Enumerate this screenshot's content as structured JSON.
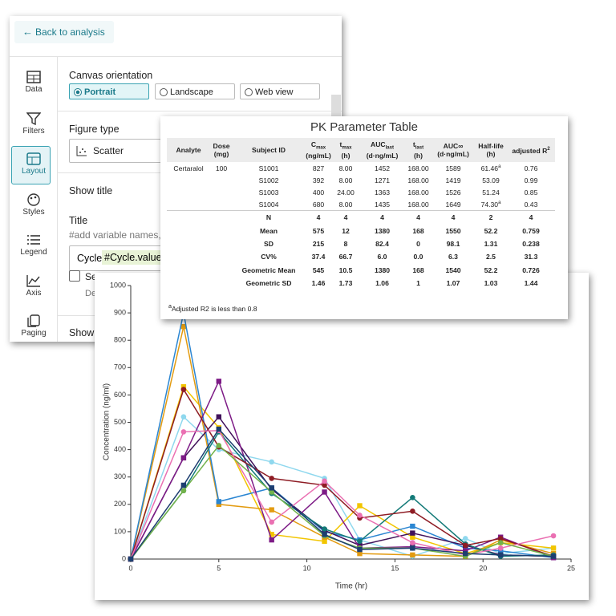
{
  "panel": {
    "back": "Back to analysis",
    "nav": [
      "Data",
      "Filters",
      "Layout",
      "Styles",
      "Legend",
      "Axis",
      "Paging"
    ],
    "orientation": {
      "label": "Canvas orientation",
      "options": [
        "Portrait",
        "Landscape",
        "Web view"
      ]
    },
    "figure_type": {
      "label": "Figure type",
      "value": "Scatter"
    },
    "show_title": "Show title",
    "title": {
      "label": "Title",
      "hint": "#add variable names,",
      "input": "Cycle",
      "tag": "#Cycle.values"
    },
    "checkbox": "Se",
    "sub": "De",
    "show": "Show"
  },
  "table": {
    "title": "PK Parameter Table",
    "columns": [
      {
        "text": "Analyte"
      },
      {
        "text": "Dose",
        "unit": "(mg)"
      },
      {
        "text": "Subject ID"
      },
      {
        "text": "C",
        "sub": "max",
        "unit": "(ng/mL)"
      },
      {
        "text": "t",
        "sub": "max",
        "unit": "(h)"
      },
      {
        "text": "AUC",
        "sub": "last",
        "unit": "(d·ng/mL)"
      },
      {
        "text": "t",
        "sub": "last",
        "unit": "(h)"
      },
      {
        "text": "AUC∞",
        "unit": "(d·ng/mL)"
      },
      {
        "text": "Half-life",
        "unit": "(h)"
      },
      {
        "text": "adjusted R",
        "sup": "2"
      }
    ],
    "rows": [
      [
        "Certaralol",
        "100",
        "S1001",
        "827",
        "8.00",
        "1452",
        "168.00",
        "1589",
        {
          "text": "61.46",
          "sup": "a"
        },
        "0.76"
      ],
      [
        null,
        null,
        "S1002",
        "392",
        "8.00",
        "1271",
        "168.00",
        "1419",
        "53.09",
        "0.99"
      ],
      [
        null,
        null,
        "S1003",
        "400",
        "24.00",
        "1363",
        "168.00",
        "1526",
        "51.24",
        "0.85"
      ],
      [
        null,
        null,
        "S1004",
        "680",
        "8.00",
        "1435",
        "168.00",
        "1649",
        {
          "text": "74.30",
          "sup": "a"
        },
        "0.43"
      ]
    ],
    "summary": [
      [
        "N",
        "4",
        "4",
        "4",
        "4",
        "4",
        "2",
        "4"
      ],
      [
        "Mean",
        "575",
        "12",
        "1380",
        "168",
        "1550",
        "52.2",
        "0.759"
      ],
      [
        "SD",
        "215",
        "8",
        "82.4",
        "0",
        "98.1",
        "1.31",
        "0.238"
      ],
      [
        "CV%",
        "37.4",
        "66.7",
        "6.0",
        "0.0",
        "6.3",
        "2.5",
        "31.3"
      ],
      [
        "Geometric Mean",
        "545",
        "10.5",
        "1380",
        "168",
        "1540",
        "52.2",
        "0.726"
      ],
      [
        "Geometric SD",
        "1.46",
        "1.73",
        "1.06",
        "1",
        "1.07",
        "1.03",
        "1.44"
      ]
    ],
    "footnote": {
      "sup": "a",
      "text": "Adjusted R2 is less than 0.8"
    }
  },
  "chart_data": {
    "type": "line",
    "xlabel": "Time (hr)",
    "ylabel": "Concentration (ng/ml)",
    "x": [
      0,
      3,
      5,
      8,
      11,
      13,
      16,
      19,
      21,
      24
    ],
    "xlim": [
      0,
      25
    ],
    "xticks": [
      0,
      5,
      10,
      15,
      20,
      25
    ],
    "ylim": [
      0,
      1000
    ],
    "yticks": [
      0,
      100,
      200,
      300,
      400,
      500,
      600,
      700,
      800,
      900,
      1000
    ],
    "series": [
      {
        "color": "#8fd8ee",
        "marker": "circle",
        "values": [
          0,
          520,
          400,
          355,
          295,
          70,
          10,
          75,
          20,
          40
        ]
      },
      {
        "color": "#f2c500",
        "marker": "square",
        "values": [
          0,
          630,
          480,
          90,
          65,
          195,
          80,
          20,
          60,
          40
        ]
      },
      {
        "color": "#e39b10",
        "marker": "square",
        "values": [
          0,
          850,
          200,
          180,
          80,
          20,
          15,
          10,
          70,
          20
        ]
      },
      {
        "color": "#2b86d2",
        "marker": "square",
        "values": [
          0,
          900,
          210,
          260,
          100,
          70,
          120,
          40,
          30,
          5
        ]
      },
      {
        "color": "#41125a",
        "marker": "square",
        "values": [
          0,
          370,
          520,
          255,
          105,
          50,
          95,
          50,
          15,
          10
        ]
      },
      {
        "color": "#7d1b86",
        "marker": "square",
        "values": [
          0,
          370,
          650,
          70,
          245,
          40,
          45,
          30,
          80,
          5
        ]
      },
      {
        "color": "#137a78",
        "marker": "circle",
        "values": [
          0,
          250,
          465,
          240,
          110,
          65,
          225,
          55,
          10,
          15
        ]
      },
      {
        "color": "#8e1c24",
        "marker": "circle",
        "values": [
          0,
          620,
          410,
          295,
          270,
          150,
          175,
          50,
          75,
          10
        ]
      },
      {
        "color": "#ea70b2",
        "marker": "circle",
        "values": [
          0,
          465,
          470,
          135,
          285,
          160,
          60,
          15,
          40,
          85
        ]
      },
      {
        "color": "#72b24a",
        "marker": "circle",
        "values": [
          0,
          250,
          415,
          245,
          85,
          40,
          40,
          10,
          60,
          10
        ]
      },
      {
        "color": "#1d3e70",
        "marker": "square",
        "values": [
          0,
          270,
          475,
          260,
          90,
          35,
          40,
          20,
          15,
          10
        ]
      }
    ]
  }
}
